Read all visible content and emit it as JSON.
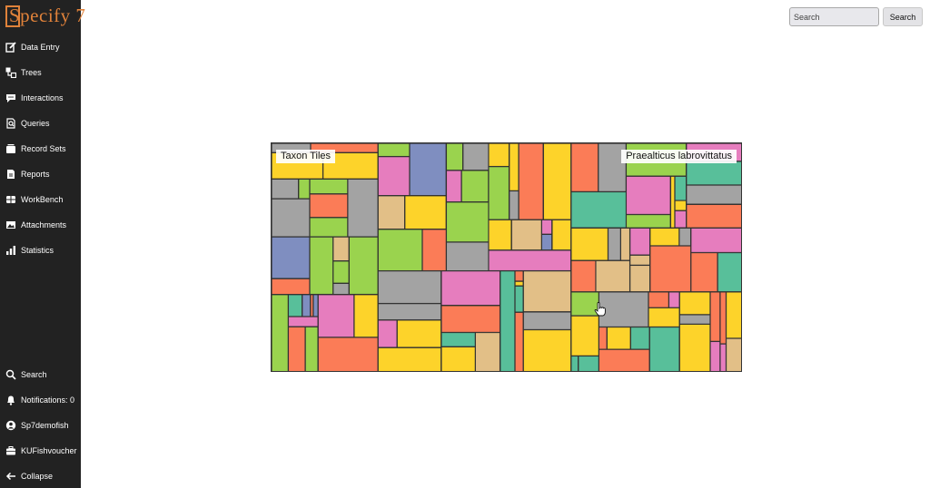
{
  "app": {
    "logo_text": "Specify 7",
    "accent_color": "#e0823a"
  },
  "sidebar": {
    "top_items": [
      {
        "label": "Data Entry",
        "icon": "pencil-square-icon"
      },
      {
        "label": "Trees",
        "icon": "tree-nodes-icon"
      },
      {
        "label": "Interactions",
        "icon": "chat-bubble-icon"
      },
      {
        "label": "Queries",
        "icon": "magnifier-document-icon"
      },
      {
        "label": "Record Sets",
        "icon": "record-stack-icon"
      },
      {
        "label": "Reports",
        "icon": "report-document-icon"
      },
      {
        "label": "WorkBench",
        "icon": "workbench-table-icon"
      },
      {
        "label": "Attachments",
        "icon": "image-icon"
      },
      {
        "label": "Statistics",
        "icon": "bar-chart-icon"
      }
    ],
    "bottom_items": [
      {
        "label": "Search",
        "icon": "search-icon"
      },
      {
        "label": "Notifications: 0",
        "icon": "bell-icon"
      },
      {
        "label": "Sp7demofish",
        "icon": "user-circle-icon"
      },
      {
        "label": "KUFishvoucher",
        "icon": "briefcase-icon"
      },
      {
        "label": "Collapse",
        "icon": "arrow-left-icon"
      }
    ]
  },
  "header": {
    "search_placeholder": "Search",
    "search_button_label": "Search"
  },
  "main": {
    "title_label": "Taxon Tiles",
    "hover_label": "Praealticus labrovittatus",
    "palette": [
      "#9ad34e",
      "#fdd32a",
      "#e67dbe",
      "#7f8ec0",
      "#58bf9a",
      "#e2bf87",
      "#a3a3a3",
      "#fb7c57"
    ]
  }
}
